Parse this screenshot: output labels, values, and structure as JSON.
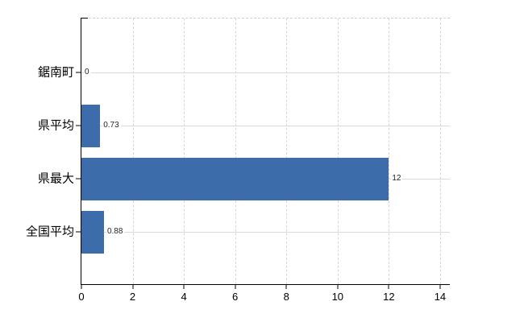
{
  "chart_data": {
    "type": "bar",
    "orientation": "horizontal",
    "title": "",
    "categories": [
      "鋸南町",
      "県平均",
      "県最大",
      "全国平均"
    ],
    "values": [
      0,
      0.73,
      12,
      0.88
    ],
    "value_labels": [
      "0",
      "0.73",
      "12",
      "0.88"
    ],
    "x_tick_values": [
      0,
      2,
      4,
      6,
      8,
      10,
      12,
      14
    ],
    "x_tick_labels": [
      "0",
      "2",
      "4",
      "6",
      "8",
      "10",
      "12",
      "14"
    ],
    "xlim": [
      0,
      14.38
    ],
    "grid": true,
    "legend": false,
    "colors": {
      "bar": "#3d6cab",
      "axis": "#000000",
      "hgrid": "#d5dcd2",
      "vgrid": "#d8d4d8",
      "top_border": "#d2ced2",
      "value_label": "#1f1f1f",
      "tick_label": "#000000",
      "background": "#ffffff"
    }
  }
}
